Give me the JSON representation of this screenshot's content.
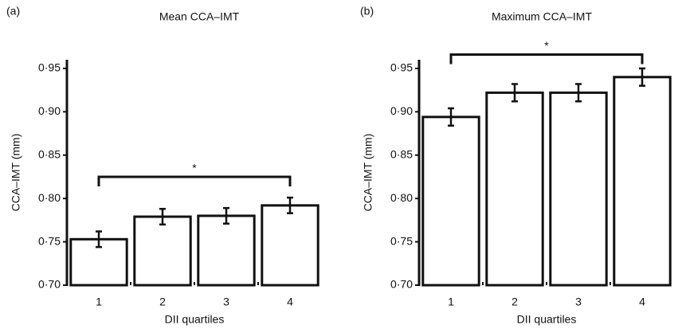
{
  "chart_data": [
    {
      "type": "bar",
      "panel_label": "(a)",
      "title": "Mean CCA–IMT",
      "x_label": "DII quartiles",
      "y_label": "CCA–IMT (mm)",
      "categories": [
        "1",
        "2",
        "3",
        "4"
      ],
      "values": [
        0.753,
        0.779,
        0.78,
        0.792
      ],
      "errors": [
        0.009,
        0.009,
        0.009,
        0.009
      ],
      "color": "#ffffff",
      "ylim": [
        0.7,
        0.96
      ],
      "yticks": [
        {
          "value": 0.7,
          "label": "0·70"
        },
        {
          "value": 0.75,
          "label": "0·75"
        },
        {
          "value": 0.8,
          "label": "0·80"
        },
        {
          "value": 0.85,
          "label": "0·85"
        },
        {
          "value": 0.9,
          "label": "0·90"
        },
        {
          "value": 0.95,
          "label": "0·95"
        }
      ],
      "annotation": {
        "text": "*",
        "y": 0.825
      }
    },
    {
      "type": "bar",
      "panel_label": "(b)",
      "title": "Maximum CCA–IMT",
      "x_label": "DII quartiles",
      "y_label": "CCA–IMT (mm)",
      "categories": [
        "1",
        "2",
        "3",
        "4"
      ],
      "values": [
        0.894,
        0.922,
        0.922,
        0.94
      ],
      "errors": [
        0.01,
        0.01,
        0.01,
        0.01
      ],
      "color": "#ffffff",
      "ylim": [
        0.7,
        0.96
      ],
      "yticks": [
        {
          "value": 0.7,
          "label": "0·70"
        },
        {
          "value": 0.75,
          "label": "0·75"
        },
        {
          "value": 0.8,
          "label": "0·80"
        },
        {
          "value": 0.85,
          "label": "0·85"
        },
        {
          "value": 0.9,
          "label": "0·90"
        },
        {
          "value": 0.95,
          "label": "0·95"
        }
      ],
      "annotation": {
        "text": "*",
        "y": 0.966
      }
    }
  ]
}
